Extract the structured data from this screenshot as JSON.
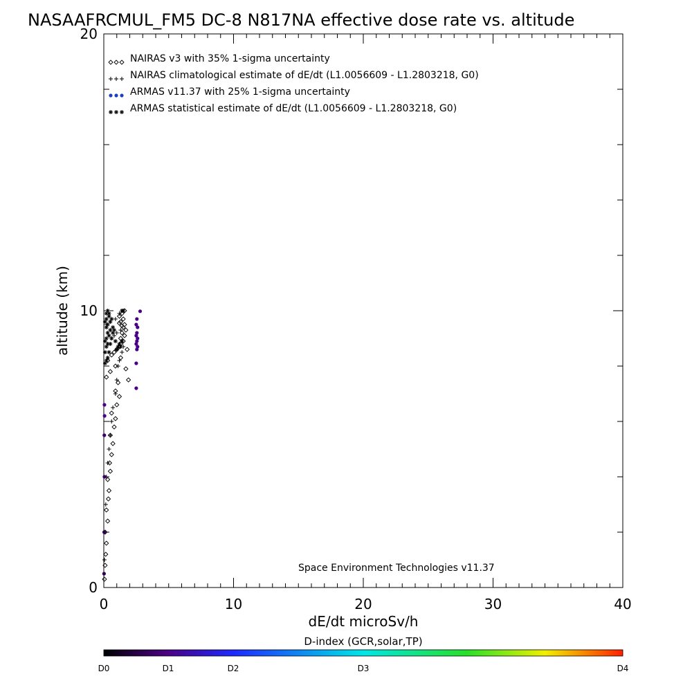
{
  "chart_data": {
    "type": "scatter",
    "title": "NASAAFRCMUL_FM5 DC-8   N817NA effective dose rate vs. altitude",
    "xlabel": "dE/dt microSv/h",
    "ylabel": "altitude (km)",
    "xlim": [
      0,
      40
    ],
    "ylim": [
      0,
      20
    ],
    "x_ticks": [
      "0",
      "10",
      "20",
      "30",
      "40"
    ],
    "y_ticks": [
      "0",
      "10",
      "20"
    ],
    "grid": false,
    "legend_position": "top-left",
    "legend": [
      {
        "label": "NAIRAS v3 with 35% 1-sigma uncertainty",
        "marker": "diamond",
        "color": "#000000"
      },
      {
        "label": "NAIRAS climatological estimate of dE/dt (L1.0056609 - L1.2803218, G0)",
        "marker": "plus",
        "color": "#000000"
      },
      {
        "label": "ARMAS v11.37 with 25% 1-sigma uncertainty",
        "marker": "dot",
        "color": "#1f3fbf"
      },
      {
        "label": "ARMAS statistical estimate of dE/dt (L1.0056609 - L1.2803218, G0)",
        "marker": "asterisk",
        "color": "#000000"
      }
    ],
    "annotation": "Space Environment Technologies v11.37",
    "series": [
      {
        "name": "NAIRAS v3 with 35% 1-sigma uncertainty",
        "marker": "diamond",
        "x": [
          0.05,
          0.1,
          0.15,
          0.2,
          0.1,
          0.3,
          0.2,
          0.35,
          0.4,
          0.3,
          0.5,
          0.45,
          0.6,
          0.7,
          0.5,
          0.8,
          0.9,
          0.6,
          1.0,
          1.2,
          0.9,
          1.1,
          0.2,
          0.5,
          0.9,
          0.3,
          0.6,
          1.0,
          1.3,
          0.8,
          1.2,
          1.5,
          1.3,
          1.6,
          1.4,
          1.7,
          1.5,
          1.6,
          1.8,
          1.3,
          1.5,
          1.7,
          1.9,
          1.2,
          1.4,
          1.6,
          1.3,
          1.4,
          1.2
        ],
        "y": [
          0.3,
          0.8,
          1.2,
          1.6,
          2.0,
          2.4,
          2.8,
          3.2,
          3.5,
          3.9,
          4.2,
          4.5,
          4.8,
          5.2,
          5.5,
          5.8,
          6.1,
          6.3,
          6.6,
          6.9,
          7.1,
          7.4,
          7.6,
          7.8,
          8.0,
          8.2,
          8.4,
          8.6,
          8.3,
          8.5,
          8.7,
          8.9,
          9.0,
          9.1,
          9.2,
          9.3,
          9.4,
          9.5,
          8.6,
          9.6,
          9.7,
          7.9,
          7.5,
          9.8,
          9.9,
          10.0,
          8.8,
          9.45,
          9.55
        ]
      },
      {
        "name": "NAIRAS climatological estimate of dE/dt (L1.0056609 - L1.2803218, G0)",
        "marker": "plus",
        "x": [
          0.05,
          0.1,
          0.15,
          0.2,
          0.3,
          0.4,
          0.5,
          0.6,
          0.7,
          0.9,
          1.0,
          1.1,
          1.2,
          1.4,
          1.5,
          0.3,
          0.6,
          0.8,
          1.0,
          1.3,
          0.2,
          0.5,
          0.9,
          1.2,
          1.4
        ],
        "y": [
          1.0,
          2.0,
          3.0,
          4.0,
          4.5,
          5.0,
          5.5,
          6.0,
          6.5,
          7.0,
          7.5,
          8.0,
          8.2,
          8.5,
          8.7,
          8.8,
          9.0,
          9.1,
          9.2,
          9.3,
          9.5,
          9.6,
          9.7,
          9.9,
          10.0
        ]
      },
      {
        "name": "ARMAS v11.37 with 25% 1-sigma uncertainty",
        "marker": "dot",
        "x": [
          0.02,
          0.03,
          0.05,
          0.04,
          0.06,
          0.05,
          2.5,
          2.5,
          2.55,
          2.6,
          2.5,
          2.55,
          2.6,
          2.5,
          2.55,
          2.6,
          2.5,
          2.55,
          2.8
        ],
        "y": [
          0.5,
          2.0,
          4.0,
          5.5,
          6.2,
          6.6,
          7.2,
          8.1,
          8.6,
          8.7,
          8.8,
          8.9,
          9.0,
          9.1,
          9.2,
          9.4,
          9.5,
          9.7,
          9.98
        ],
        "d_index": [
          0.3,
          0.3,
          0.4,
          0.4,
          0.5,
          0.5,
          0.5,
          0.5,
          0.5,
          0.5,
          0.5,
          0.5,
          0.5,
          0.5,
          0.5,
          0.5,
          0.5,
          0.5,
          0.5
        ]
      },
      {
        "name": "ARMAS statistical estimate of dE/dt (L1.0056609 - L1.2803218, G0)",
        "marker": "asterisk",
        "x": [
          0.1,
          0.2,
          0.3,
          0.1,
          0.4,
          0.2,
          0.3,
          0.5,
          0.1,
          0.2,
          0.6,
          0.4,
          0.3,
          0.7,
          0.8,
          0.5,
          1.0,
          1.1,
          1.2,
          0.9,
          1.3,
          1.4,
          0.2,
          0.3,
          0.5,
          0.6,
          0.4,
          0.7,
          0.2,
          0.3,
          0.4,
          1.4,
          1.5,
          0.1,
          0.2
        ],
        "y": [
          8.1,
          8.2,
          8.3,
          8.5,
          8.5,
          8.7,
          8.8,
          8.8,
          8.9,
          9.0,
          9.0,
          9.1,
          9.2,
          9.2,
          9.3,
          9.3,
          8.6,
          8.7,
          8.8,
          8.9,
          8.7,
          8.9,
          9.4,
          9.5,
          9.6,
          9.7,
          9.8,
          9.4,
          9.9,
          10.0,
          9.9,
          10.0,
          10.0,
          9.6,
          9.7
        ]
      }
    ],
    "colorbar": {
      "title": "D-index (GCR,solar,TP)",
      "labels": [
        "D0",
        "D1",
        "D2",
        "D3",
        "D4"
      ]
    }
  }
}
